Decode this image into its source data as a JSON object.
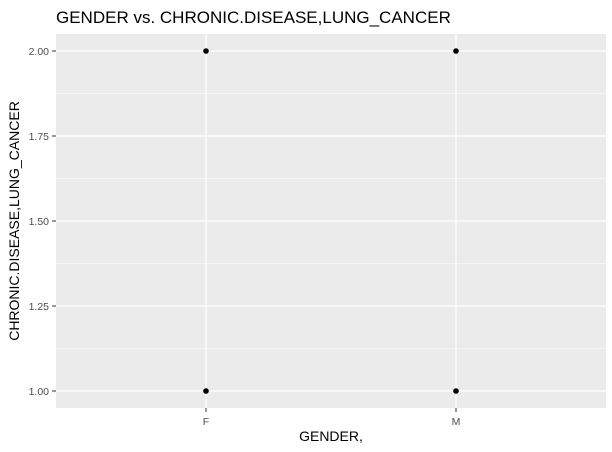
{
  "chart_data": {
    "type": "scatter",
    "title": "GENDER vs. CHRONIC.DISEASE,LUNG_CANCER",
    "xlabel": "GENDER,",
    "ylabel": "CHRONIC.DISEASE,LUNG_CANCER",
    "categories": [
      "F",
      "M"
    ],
    "y_ticks": [
      "1.00",
      "1.25",
      "1.50",
      "1.75",
      "2.00"
    ],
    "ylim": [
      0.95,
      2.05
    ],
    "points": [
      {
        "x": "F",
        "y": 2.0
      },
      {
        "x": "F",
        "y": 1.0
      },
      {
        "x": "M",
        "y": 2.0
      },
      {
        "x": "M",
        "y": 1.0
      }
    ],
    "grid": true,
    "colors": {
      "panel_background": "#ebebeb",
      "grid_major": "#ffffff",
      "point": "#000000"
    }
  }
}
